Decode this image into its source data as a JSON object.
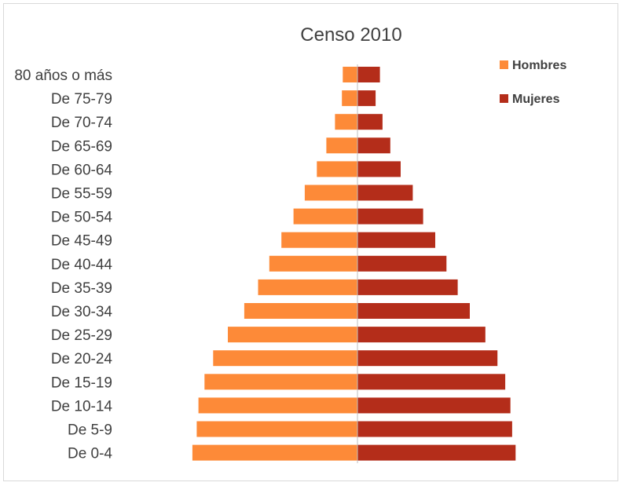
{
  "chart_data": {
    "type": "bar",
    "title": "Censo 2010",
    "xlabel": "",
    "ylabel": "",
    "orientation": "horizontal",
    "layout": "population-pyramid",
    "categories": [
      "80 años o más",
      "De 75-79",
      "De 70-74",
      "De 65-69",
      "De 60-64",
      "De 55-59",
      "De 50-54",
      "De 45-49",
      "De 40-44",
      "De 35-39",
      "De 30-34",
      "De 25-29",
      "De 20-24",
      "De 15-19",
      "De 10-14",
      "De 5-9",
      "De 0-4"
    ],
    "series": [
      {
        "name": "Hombres",
        "color": "#fd8a38",
        "values": [
          1.7,
          1.8,
          2.6,
          3.6,
          4.7,
          6.1,
          7.4,
          8.8,
          10.2,
          11.5,
          13.1,
          15.0,
          16.7,
          17.7,
          18.4,
          18.6,
          19.1
        ]
      },
      {
        "name": "Mujeres",
        "color": "#b42d1a",
        "values": [
          2.6,
          2.1,
          2.9,
          3.8,
          5.0,
          6.4,
          7.6,
          9.0,
          10.3,
          11.6,
          13.0,
          14.8,
          16.2,
          17.1,
          17.7,
          17.9,
          18.3
        ]
      }
    ],
    "xlim": [
      -20,
      20
    ],
    "grid": false,
    "legend_position": "top-right"
  }
}
